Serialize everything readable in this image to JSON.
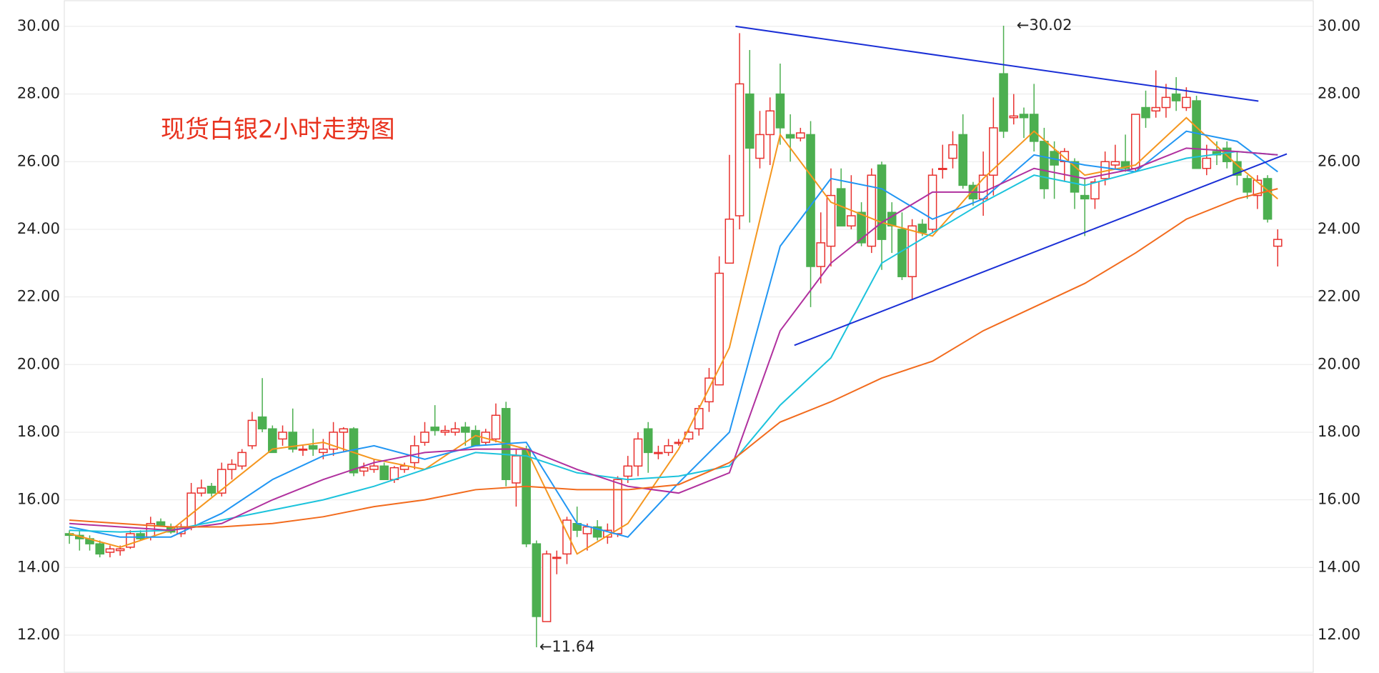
{
  "chart_data": {
    "type": "candlestick",
    "title": "现货白银2小时走势图",
    "title_color": "#e8321e",
    "up_color": "#e8322f",
    "down_color": "#4caf50",
    "grid": true,
    "xlim": [
      -0.5,
      122.5
    ],
    "ylim": [
      10.88,
      30.78
    ],
    "yticks": [
      {
        "value": 12,
        "label": "12.00"
      },
      {
        "value": 14,
        "label": "14.00"
      },
      {
        "value": 16,
        "label": "16.00"
      },
      {
        "value": 18,
        "label": "18.00"
      },
      {
        "value": 20,
        "label": "20.00"
      },
      {
        "value": 22,
        "label": "22.00"
      },
      {
        "value": 24,
        "label": "24.00"
      },
      {
        "value": 26,
        "label": "26.00"
      },
      {
        "value": 28,
        "label": "28.00"
      },
      {
        "value": 30,
        "label": "30.00"
      }
    ],
    "open": [
      15.0,
      14.95,
      14.85,
      14.7,
      14.45,
      14.5,
      14.6,
      15.0,
      14.9,
      15.35,
      15.2,
      15.0,
      15.2,
      16.2,
      16.4,
      16.2,
      16.9,
      17.0,
      17.6,
      18.45,
      18.1,
      17.8,
      18.0,
      17.5,
      17.6,
      17.4,
      17.5,
      18.0,
      18.1,
      16.85,
      16.9,
      17.0,
      16.6,
      16.9,
      17.1,
      17.7,
      18.15,
      18.0,
      18.0,
      18.15,
      18.05,
      17.7,
      17.8,
      18.7,
      16.5,
      17.5,
      14.7,
      12.4,
      14.3,
      14.4,
      15.3,
      15.0,
      15.2,
      14.9,
      15.0,
      16.7,
      17.0,
      18.1,
      17.4,
      17.4,
      17.7,
      17.8,
      18.1,
      18.9,
      19.4,
      23.0,
      24.4,
      28.0,
      26.1,
      26.8,
      28.0,
      26.8,
      26.7,
      26.8,
      22.9,
      23.5,
      25.2,
      24.1,
      24.5,
      23.5,
      25.9,
      24.5,
      24.0,
      22.6,
      24.15,
      24.0,
      25.8,
      26.1,
      26.8,
      25.3,
      24.9,
      25.6,
      28.6,
      27.3,
      27.4,
      27.4,
      26.6,
      26.3,
      26.0,
      26.0,
      25.0,
      24.9,
      25.5,
      25.9,
      26.0,
      25.8,
      27.6,
      27.5,
      27.6,
      28.0,
      27.6,
      27.8,
      25.8,
      26.3,
      26.4,
      26.0,
      25.5,
      25.0,
      25.5,
      23.5
    ],
    "high": [
      15.1,
      15.1,
      14.95,
      14.8,
      14.65,
      14.65,
      15.1,
      15.1,
      15.5,
      15.45,
      15.3,
      15.3,
      16.5,
      16.6,
      16.5,
      17.1,
      17.2,
      17.5,
      18.6,
      19.6,
      18.2,
      18.2,
      18.7,
      17.6,
      18.1,
      17.8,
      18.3,
      18.15,
      18.15,
      17.1,
      17.2,
      17.1,
      17.0,
      17.1,
      17.9,
      18.3,
      18.8,
      18.2,
      18.3,
      18.3,
      18.2,
      18.1,
      18.85,
      18.9,
      17.5,
      17.6,
      14.8,
      14.5,
      14.5,
      15.5,
      15.8,
      15.3,
      15.4,
      15.3,
      16.7,
      17.3,
      18.0,
      18.3,
      17.6,
      17.8,
      17.8,
      18.1,
      18.8,
      19.9,
      23.2,
      26.2,
      29.8,
      29.3,
      27.5,
      27.9,
      28.9,
      27.4,
      27.0,
      27.2,
      24.5,
      25.8,
      25.8,
      25.6,
      24.8,
      25.8,
      26.0,
      24.8,
      24.5,
      24.3,
      24.3,
      25.8,
      26.5,
      26.9,
      27.4,
      25.4,
      26.3,
      27.9,
      30.02,
      28.0,
      27.6,
      28.3,
      27.0,
      26.6,
      26.4,
      26.1,
      25.5,
      25.5,
      26.3,
      26.5,
      26.8,
      27.4,
      28.1,
      28.7,
      28.3,
      28.5,
      28.2,
      27.95,
      26.5,
      26.6,
      26.6,
      26.3,
      25.6,
      25.6,
      25.6,
      24.0
    ],
    "low": [
      14.7,
      14.5,
      14.5,
      14.3,
      14.3,
      14.35,
      14.55,
      14.8,
      14.8,
      15.2,
      15.0,
      14.9,
      15.1,
      16.1,
      16.1,
      16.1,
      16.6,
      16.9,
      17.5,
      18.0,
      17.4,
      17.6,
      17.4,
      17.3,
      17.3,
      17.2,
      17.3,
      17.4,
      16.7,
      16.7,
      16.8,
      16.6,
      16.5,
      16.8,
      16.9,
      17.6,
      17.9,
      17.9,
      17.9,
      17.6,
      17.6,
      17.6,
      17.7,
      16.4,
      15.8,
      14.6,
      11.64,
      12.4,
      13.8,
      14.1,
      14.9,
      14.5,
      14.8,
      14.7,
      14.9,
      16.5,
      16.7,
      16.8,
      17.2,
      17.3,
      17.6,
      17.7,
      17.9,
      18.6,
      19.4,
      23.0,
      24.0,
      24.2,
      25.8,
      25.9,
      26.5,
      26.0,
      26.6,
      21.7,
      22.4,
      22.9,
      24.2,
      24.0,
      23.5,
      23.3,
      22.8,
      23.3,
      22.5,
      21.9,
      23.8,
      23.9,
      25.5,
      25.8,
      25.2,
      24.7,
      24.4,
      25.0,
      26.7,
      27.1,
      26.7,
      26.3,
      24.9,
      24.9,
      25.4,
      24.6,
      23.8,
      24.6,
      25.3,
      25.8,
      25.7,
      25.7,
      27.0,
      27.3,
      27.3,
      27.5,
      27.5,
      25.8,
      25.6,
      25.9,
      25.8,
      25.3,
      24.9,
      24.6,
      24.2,
      22.9
    ],
    "close": [
      14.95,
      14.85,
      14.7,
      14.4,
      14.55,
      14.55,
      15.0,
      14.85,
      15.3,
      15.25,
      15.05,
      15.2,
      16.2,
      16.35,
      16.2,
      16.9,
      17.05,
      17.4,
      18.35,
      18.1,
      17.4,
      18.0,
      17.5,
      17.5,
      17.5,
      17.5,
      18.0,
      18.1,
      16.8,
      16.95,
      17.0,
      16.6,
      16.95,
      17.0,
      17.6,
      18.0,
      18.05,
      18.05,
      18.1,
      18.0,
      17.6,
      18.0,
      18.5,
      16.6,
      17.3,
      14.7,
      12.55,
      14.4,
      14.3,
      15.4,
      15.1,
      15.2,
      14.9,
      15.1,
      16.6,
      17.0,
      17.8,
      17.4,
      17.4,
      17.6,
      17.7,
      18.0,
      18.7,
      19.6,
      22.7,
      24.3,
      28.3,
      26.4,
      26.8,
      27.5,
      27.0,
      26.7,
      26.85,
      22.9,
      23.6,
      25.0,
      24.1,
      24.4,
      23.6,
      25.6,
      23.7,
      24.1,
      22.6,
      24.1,
      23.9,
      25.6,
      25.8,
      26.5,
      25.3,
      24.9,
      25.6,
      27.0,
      26.9,
      27.35,
      27.3,
      26.6,
      25.2,
      25.9,
      26.3,
      25.1,
      24.9,
      25.4,
      26.0,
      26.0,
      25.8,
      27.4,
      27.3,
      27.6,
      27.9,
      27.8,
      27.9,
      25.8,
      26.1,
      26.2,
      26.0,
      25.6,
      25.1,
      25.45,
      24.3,
      23.7
    ],
    "lines": [
      {
        "color": "#f5961e",
        "x": [
          0,
          5,
          10,
          15,
          20,
          25,
          30,
          35,
          40,
          45,
          50,
          55,
          60,
          65,
          70,
          75,
          80,
          85,
          90,
          95,
          100,
          105,
          110,
          115,
          119
        ],
        "values": [
          15.0,
          14.6,
          15.1,
          16.3,
          17.5,
          17.7,
          17.2,
          16.9,
          17.9,
          17.5,
          14.4,
          15.3,
          17.5,
          20.5,
          26.8,
          24.8,
          24.2,
          23.8,
          25.5,
          26.9,
          25.6,
          25.9,
          27.3,
          25.9,
          24.9
        ]
      },
      {
        "color": "#2196f3",
        "x": [
          0,
          5,
          10,
          15,
          20,
          25,
          30,
          35,
          40,
          45,
          50,
          55,
          60,
          65,
          70,
          75,
          80,
          85,
          90,
          95,
          100,
          105,
          110,
          115,
          119
        ],
        "values": [
          15.2,
          14.9,
          14.9,
          15.6,
          16.6,
          17.3,
          17.6,
          17.2,
          17.6,
          17.7,
          15.3,
          14.9,
          16.5,
          18.0,
          23.5,
          25.5,
          25.2,
          24.3,
          24.9,
          26.2,
          25.9,
          25.7,
          26.9,
          26.6,
          25.7
        ]
      },
      {
        "color": "#1cc3dc",
        "x": [
          0,
          5,
          10,
          15,
          20,
          25,
          30,
          35,
          40,
          45,
          50,
          55,
          60,
          65,
          70,
          75,
          80,
          85,
          90,
          95,
          100,
          105,
          110,
          115,
          119
        ],
        "values": [
          15.1,
          15.05,
          15.1,
          15.4,
          15.7,
          16.0,
          16.4,
          16.9,
          17.4,
          17.3,
          16.8,
          16.6,
          16.7,
          17.0,
          18.8,
          20.2,
          23.0,
          23.9,
          24.8,
          25.6,
          25.3,
          25.7,
          26.1,
          26.3,
          26.2
        ]
      },
      {
        "color": "#b0309e",
        "x": [
          0,
          5,
          10,
          15,
          20,
          25,
          30,
          35,
          40,
          45,
          50,
          55,
          60,
          65,
          70,
          75,
          80,
          85,
          90,
          95,
          100,
          105,
          110,
          115,
          119
        ],
        "values": [
          15.3,
          15.2,
          15.1,
          15.3,
          16.0,
          16.6,
          17.1,
          17.4,
          17.5,
          17.5,
          16.9,
          16.4,
          16.2,
          16.8,
          21.0,
          23.0,
          24.2,
          25.1,
          25.1,
          25.8,
          25.5,
          25.8,
          26.4,
          26.3,
          26.2
        ]
      },
      {
        "color": "#f26b1d",
        "x": [
          0,
          5,
          10,
          15,
          20,
          25,
          30,
          35,
          40,
          45,
          50,
          55,
          60,
          65,
          70,
          75,
          80,
          85,
          90,
          95,
          100,
          105,
          110,
          115,
          119
        ],
        "values": [
          15.4,
          15.3,
          15.2,
          15.2,
          15.3,
          15.5,
          15.8,
          16.0,
          16.3,
          16.4,
          16.3,
          16.3,
          16.45,
          17.1,
          18.3,
          18.9,
          19.6,
          20.1,
          21.0,
          21.7,
          22.4,
          23.3,
          24.3,
          24.9,
          25.2
        ]
      }
    ],
    "trendlines": [
      {
        "color": "#1a2fd6",
        "x": [
          65.6,
          117.1
        ],
        "values": [
          30.0,
          27.79
        ]
      },
      {
        "color": "#1a2fd6",
        "x": [
          71.4,
          119.9
        ],
        "values": [
          20.57,
          26.23
        ]
      }
    ],
    "annotations": [
      {
        "text": "←30.02",
        "x": 93,
        "y": 30.02
      },
      {
        "text": "←11.64",
        "x": 46,
        "y": 11.64
      }
    ]
  }
}
